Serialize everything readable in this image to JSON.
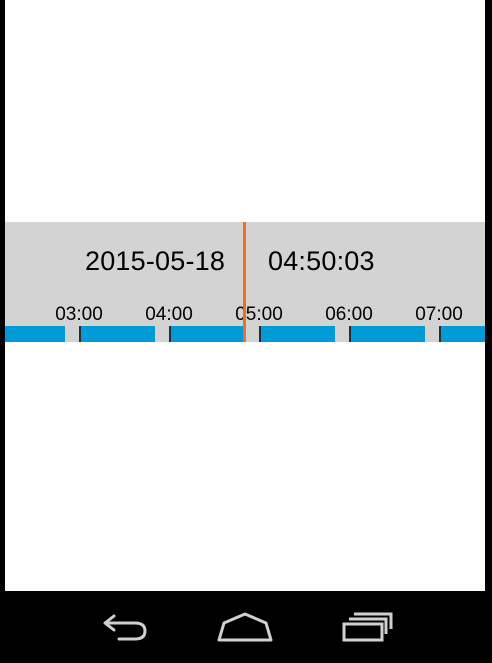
{
  "timeline": {
    "date": "2015-05-18",
    "time": "04:50:03",
    "tick_labels": [
      "03:00",
      "04:00",
      "05:00",
      "06:00",
      "07:00"
    ],
    "colors": {
      "panel": "#d3d3d3",
      "recording": "#009ad6",
      "playhead": "#f26d21"
    }
  },
  "navbar": {
    "buttons": [
      "back-icon",
      "home-icon",
      "recent-apps-icon"
    ]
  }
}
